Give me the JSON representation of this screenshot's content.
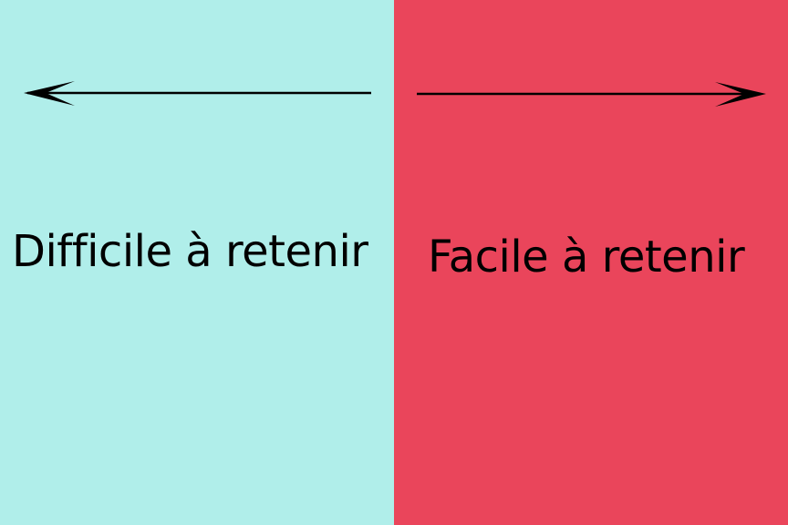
{
  "colors": {
    "left_background": "#B0EEEA",
    "right_background": "#EA455B",
    "ink": "#000000"
  },
  "left": {
    "label": "Difficile à retenir",
    "arrow_icon": "arrow-left-icon"
  },
  "right": {
    "label": "Facile à retenir",
    "arrow_icon": "arrow-right-icon"
  }
}
